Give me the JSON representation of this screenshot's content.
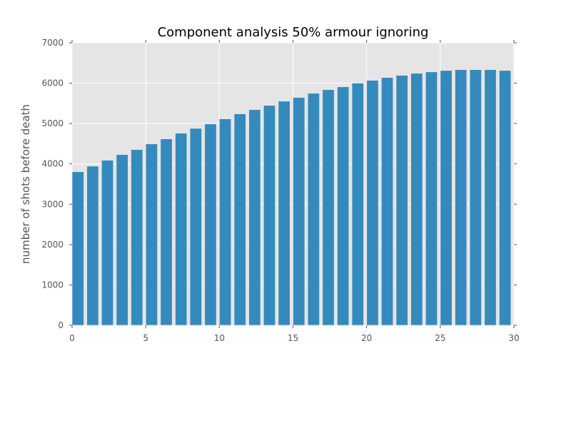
{
  "chart_data": {
    "type": "bar",
    "title": "Component analysis 50% armour ignoring",
    "xlabel": "",
    "ylabel": "number of shots before death",
    "x": [
      0,
      1,
      2,
      3,
      4,
      5,
      6,
      7,
      8,
      9,
      10,
      11,
      12,
      13,
      14,
      15,
      16,
      17,
      18,
      19,
      20,
      21,
      22,
      23,
      24,
      25,
      26,
      27,
      28,
      29
    ],
    "values": [
      3805,
      3945,
      4090,
      4230,
      4355,
      4495,
      4620,
      4760,
      4880,
      4990,
      5115,
      5240,
      5345,
      5450,
      5555,
      5645,
      5750,
      5840,
      5910,
      6000,
      6070,
      6140,
      6195,
      6245,
      6280,
      6315,
      6335,
      6335,
      6335,
      6315
    ],
    "bar_width": 0.8,
    "xlim": [
      0,
      30
    ],
    "ylim": [
      0,
      7000
    ],
    "xticks": [
      "0",
      "5",
      "10",
      "15",
      "20",
      "25",
      "30"
    ],
    "yticks": [
      "0",
      "1000",
      "2000",
      "3000",
      "4000",
      "5000",
      "6000",
      "7000"
    ],
    "grid": true,
    "legend": null,
    "colors": {
      "bar": "#348ABD",
      "bar_edge": "#E5E5E5",
      "background": "#E5E5E5",
      "grid": "#FFFFFF",
      "tick": "#555555"
    }
  }
}
